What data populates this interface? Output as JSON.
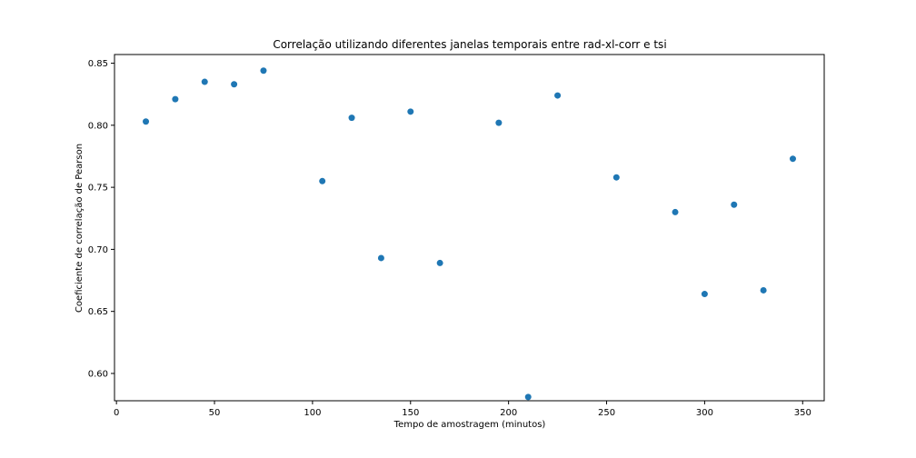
{
  "chart_data": {
    "type": "scatter",
    "title": "Correlação utilizando diferentes janelas temporais entre rad-xl-corr e tsi",
    "xlabel": "Tempo de amostragem (minutos)",
    "ylabel": "Coeficiente de correlação de Pearson",
    "xlim": [
      -1,
      361
    ],
    "ylim": [
      0.578,
      0.857
    ],
    "xticks": [
      0,
      50,
      100,
      150,
      200,
      250,
      300,
      350
    ],
    "xtick_labels": [
      "0",
      "50",
      "100",
      "150",
      "200",
      "250",
      "300",
      "350"
    ],
    "yticks": [
      0.6,
      0.65,
      0.7,
      0.75,
      0.8,
      0.85
    ],
    "ytick_labels": [
      "0.60",
      "0.65",
      "0.70",
      "0.75",
      "0.80",
      "0.85"
    ],
    "grid": false,
    "marker_color": "#1f77b4",
    "series": [
      {
        "x": [
          15,
          30,
          45,
          60,
          75,
          105,
          120,
          135,
          150,
          165,
          195,
          210,
          225,
          255,
          285,
          300,
          315,
          330,
          345
        ],
        "y": [
          0.803,
          0.821,
          0.835,
          0.833,
          0.844,
          0.755,
          0.806,
          0.693,
          0.811,
          0.689,
          0.802,
          0.581,
          0.824,
          0.758,
          0.73,
          0.664,
          0.736,
          0.667,
          0.773
        ]
      }
    ]
  }
}
